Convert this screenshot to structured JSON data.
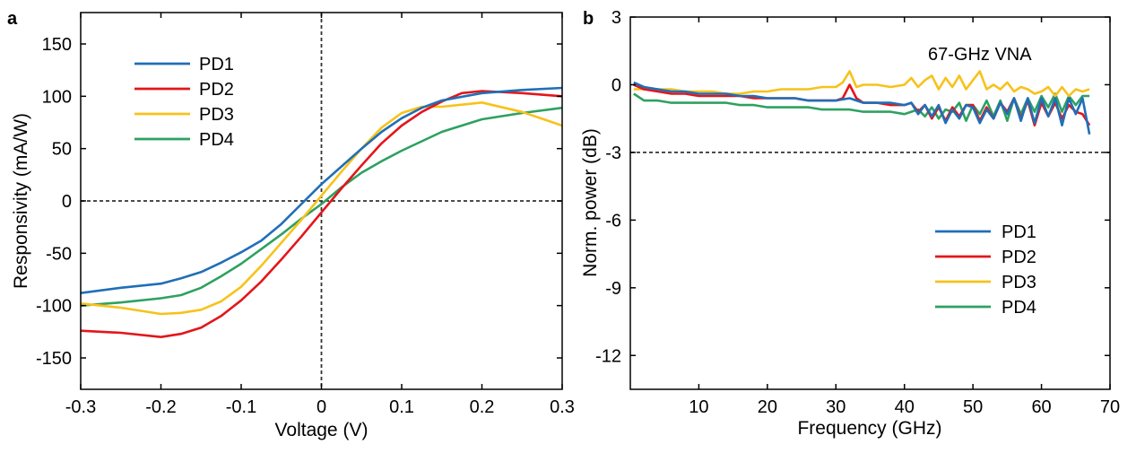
{
  "colors": {
    "PD1": "#1f6fb8",
    "PD2": "#e3161a",
    "PD3": "#f7c21b",
    "PD4": "#2ea160",
    "axis": "#000000",
    "refline": "#333333"
  },
  "chart_data": [
    {
      "panel": "a",
      "type": "line",
      "title": "",
      "xlabel": "Voltage (V)",
      "ylabel": "Responsivity (mA/W)",
      "xlim": [
        -0.3,
        0.3
      ],
      "ylim": [
        -180,
        180
      ],
      "xticks": [
        -0.3,
        -0.2,
        -0.1,
        0,
        0.1,
        0.2,
        0.3
      ],
      "xtick_labels": [
        "-0.3",
        "-0.2",
        "-0.1",
        "0",
        "0.1",
        "0.2",
        "0.3"
      ],
      "yticks": [
        150,
        100,
        50,
        0,
        -50,
        -100,
        -150
      ],
      "ytick_labels": [
        "150",
        "100",
        "50",
        "0",
        "-50",
        "-100",
        "-150"
      ],
      "reference_lines": {
        "x": 0,
        "y": 0
      },
      "legend_position": "top-left",
      "series": [
        {
          "name": "PD1",
          "x": [
            -0.3,
            -0.25,
            -0.2,
            -0.175,
            -0.15,
            -0.125,
            -0.1,
            -0.075,
            -0.05,
            -0.025,
            0,
            0.025,
            0.05,
            0.075,
            0.1,
            0.125,
            0.15,
            0.2,
            0.25,
            0.3
          ],
          "y": [
            -88,
            -83,
            -79,
            -74,
            -68,
            -59,
            -49,
            -38,
            -22,
            -3,
            16,
            33,
            50,
            66,
            79,
            89,
            96,
            103,
            106,
            108
          ]
        },
        {
          "name": "PD2",
          "x": [
            -0.3,
            -0.25,
            -0.2,
            -0.175,
            -0.15,
            -0.125,
            -0.1,
            -0.075,
            -0.05,
            -0.025,
            0,
            0.025,
            0.05,
            0.075,
            0.1,
            0.125,
            0.15,
            0.175,
            0.2,
            0.25,
            0.3
          ],
          "y": [
            -124,
            -126,
            -130,
            -127,
            -121,
            -110,
            -95,
            -77,
            -56,
            -34,
            -11,
            12,
            34,
            55,
            72,
            85,
            95,
            103,
            105,
            103,
            100
          ]
        },
        {
          "name": "PD3",
          "x": [
            -0.3,
            -0.25,
            -0.2,
            -0.175,
            -0.15,
            -0.125,
            -0.1,
            -0.075,
            -0.05,
            -0.025,
            0,
            0.025,
            0.05,
            0.075,
            0.1,
            0.125,
            0.15,
            0.175,
            0.2,
            0.25,
            0.3
          ],
          "y": [
            -98,
            -102,
            -108,
            -107,
            -104,
            -96,
            -82,
            -62,
            -40,
            -18,
            5,
            28,
            50,
            70,
            84,
            90,
            90,
            92,
            94,
            85,
            72
          ]
        },
        {
          "name": "PD4",
          "x": [
            -0.3,
            -0.25,
            -0.2,
            -0.175,
            -0.15,
            -0.125,
            -0.1,
            -0.075,
            -0.05,
            -0.025,
            0,
            0.025,
            0.05,
            0.075,
            0.1,
            0.125,
            0.15,
            0.175,
            0.2,
            0.25,
            0.3
          ],
          "y": [
            -100,
            -97,
            -93,
            -90,
            -83,
            -72,
            -60,
            -46,
            -32,
            -17,
            -3,
            13,
            27,
            38,
            48,
            57,
            66,
            72,
            78,
            84,
            89
          ]
        }
      ]
    },
    {
      "panel": "b",
      "type": "line",
      "title": "67-GHz VNA",
      "xlabel": "Frequency (GHz)",
      "ylabel": "Norm. power (dB)",
      "xlim": [
        0,
        70
      ],
      "ylim": [
        -13.5,
        3
      ],
      "xticks": [
        10,
        20,
        30,
        40,
        50,
        60,
        70
      ],
      "xtick_labels": [
        "10",
        "20",
        "30",
        "40",
        "50",
        "60",
        "70"
      ],
      "yticks": [
        3,
        0,
        -3,
        -6,
        -9,
        -12
      ],
      "ytick_labels": [
        "3",
        "0",
        "-3",
        "-6",
        "-9",
        "-12"
      ],
      "reference_lines": {
        "y": -3
      },
      "legend_position": "bottom-right",
      "series": [
        {
          "name": "PD1",
          "x": [
            0.5,
            2,
            4,
            6,
            8,
            10,
            12,
            14,
            16,
            18,
            20,
            22,
            24,
            26,
            28,
            30,
            32,
            34,
            36,
            38,
            40,
            41,
            42,
            43,
            44,
            45,
            46,
            47,
            48,
            49,
            50,
            51,
            52,
            53,
            54,
            55,
            56,
            57,
            58,
            59,
            60,
            61,
            62,
            63,
            64,
            65,
            66,
            67
          ],
          "y": [
            0.1,
            -0.1,
            -0.2,
            -0.3,
            -0.3,
            -0.4,
            -0.4,
            -0.4,
            -0.5,
            -0.5,
            -0.6,
            -0.6,
            -0.6,
            -0.7,
            -0.7,
            -0.7,
            -0.6,
            -0.8,
            -0.8,
            -0.8,
            -0.9,
            -0.8,
            -1.3,
            -0.9,
            -1.4,
            -0.9,
            -1.7,
            -1.1,
            -1.5,
            -0.9,
            -1.0,
            -1.7,
            -1.1,
            -1.5,
            -0.8,
            -1.3,
            -0.6,
            -1.6,
            -0.6,
            -1.7,
            -0.6,
            -1.4,
            -0.6,
            -1.8,
            -0.6,
            -1.3,
            -0.6,
            -2.2
          ]
        },
        {
          "name": "PD2",
          "x": [
            0.5,
            2,
            4,
            6,
            8,
            10,
            12,
            14,
            16,
            18,
            20,
            22,
            24,
            26,
            28,
            30,
            31,
            32,
            33,
            34,
            36,
            38,
            40,
            41,
            42,
            43,
            44,
            45,
            46,
            47,
            48,
            49,
            50,
            51,
            52,
            53,
            54,
            55,
            56,
            57,
            58,
            59,
            60,
            61,
            62,
            63,
            64,
            65,
            66,
            67
          ],
          "y": [
            0.0,
            -0.2,
            -0.3,
            -0.4,
            -0.4,
            -0.5,
            -0.5,
            -0.5,
            -0.5,
            -0.6,
            -0.6,
            -0.6,
            -0.6,
            -0.7,
            -0.7,
            -0.7,
            -0.6,
            0.0,
            -0.6,
            -0.8,
            -0.8,
            -0.9,
            -0.9,
            -0.8,
            -1.2,
            -0.9,
            -1.5,
            -1.0,
            -1.6,
            -1.0,
            -1.4,
            -0.9,
            -0.9,
            -1.6,
            -1.0,
            -1.5,
            -0.8,
            -1.2,
            -0.6,
            -1.5,
            -0.7,
            -1.8,
            -0.8,
            -1.4,
            -0.8,
            -1.5,
            -0.9,
            -1.2,
            -1.3,
            -1.8
          ]
        },
        {
          "name": "PD3",
          "x": [
            0.5,
            2,
            4,
            6,
            8,
            10,
            12,
            14,
            16,
            18,
            20,
            22,
            24,
            26,
            28,
            30,
            31,
            32,
            33,
            34,
            36,
            38,
            40,
            41,
            42,
            43,
            44,
            45,
            46,
            47,
            48,
            49,
            50,
            51,
            52,
            53,
            54,
            55,
            56,
            57,
            58,
            59,
            60,
            61,
            62,
            63,
            64,
            65,
            66,
            67
          ],
          "y": [
            -0.2,
            -0.2,
            -0.2,
            -0.2,
            -0.3,
            -0.3,
            -0.3,
            -0.4,
            -0.4,
            -0.3,
            -0.3,
            -0.2,
            -0.2,
            -0.2,
            -0.1,
            -0.1,
            0.1,
            0.6,
            -0.1,
            0.0,
            0.0,
            -0.1,
            0.0,
            0.3,
            -0.1,
            0.2,
            0.4,
            -0.2,
            0.3,
            -0.1,
            0.4,
            -0.2,
            0.2,
            0.6,
            -0.2,
            0.0,
            -0.2,
            0.1,
            -0.3,
            -0.1,
            -0.2,
            -0.4,
            -0.3,
            -0.1,
            -0.5,
            -0.1,
            -0.5,
            -0.2,
            -0.3,
            -0.2
          ]
        },
        {
          "name": "PD4",
          "x": [
            0.5,
            2,
            4,
            6,
            8,
            10,
            12,
            14,
            16,
            18,
            20,
            22,
            24,
            26,
            28,
            30,
            32,
            34,
            36,
            38,
            40,
            41,
            42,
            43,
            44,
            45,
            46,
            47,
            48,
            49,
            50,
            51,
            52,
            53,
            54,
            55,
            56,
            57,
            58,
            59,
            60,
            61,
            62,
            63,
            64,
            65,
            66,
            67
          ],
          "y": [
            -0.4,
            -0.7,
            -0.7,
            -0.8,
            -0.8,
            -0.8,
            -0.8,
            -0.8,
            -0.9,
            -0.9,
            -1.0,
            -1.0,
            -1.0,
            -1.0,
            -1.1,
            -1.1,
            -1.1,
            -1.2,
            -1.2,
            -1.2,
            -1.3,
            -1.2,
            -1.1,
            -1.4,
            -1.0,
            -1.5,
            -1.1,
            -1.2,
            -0.8,
            -1.6,
            -0.9,
            -1.3,
            -0.7,
            -1.4,
            -0.7,
            -1.6,
            -0.6,
            -1.3,
            -0.6,
            -1.2,
            -0.5,
            -1.0,
            -0.4,
            -1.2,
            -0.5,
            -0.9,
            -0.5,
            -0.5
          ]
        }
      ]
    }
  ]
}
